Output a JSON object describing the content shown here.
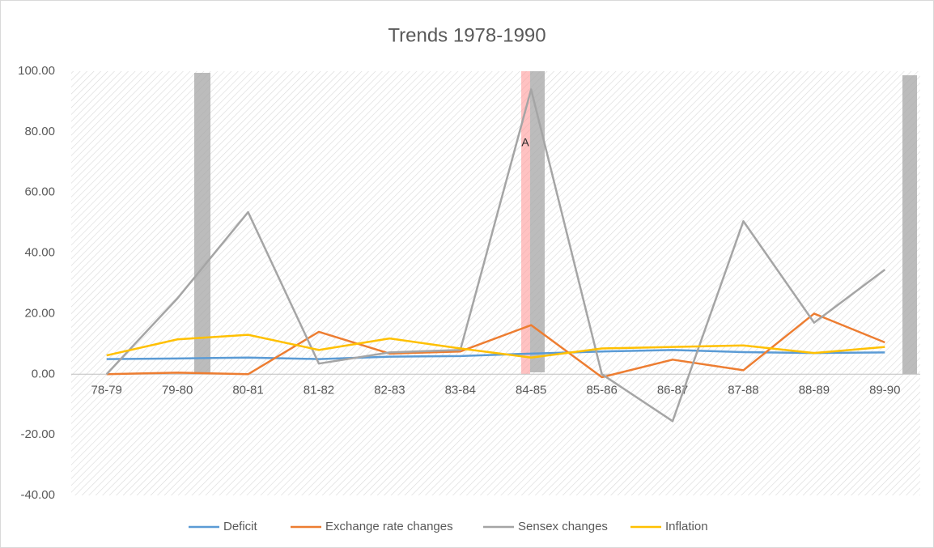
{
  "chart_data": {
    "type": "line",
    "title": "Trends 1978-1990",
    "categories": [
      "78-79",
      "79-80",
      "80-81",
      "81-82",
      "82-83",
      "83-84",
      "84-85",
      "85-86",
      "86-87",
      "87-88",
      "88-89",
      "89-90"
    ],
    "series": [
      {
        "name": "Deficit",
        "color": "#5b9bd5",
        "values": [
          5,
          5.2,
          5.5,
          5,
          5.8,
          6,
          6.8,
          7.5,
          8,
          7.3,
          7,
          7.2
        ]
      },
      {
        "name": "Exchange rate changes",
        "color": "#ed7d31",
        "values": [
          0,
          0.5,
          0,
          14,
          6.8,
          7.5,
          16.2,
          -1,
          4.8,
          1.3,
          20,
          10.5
        ]
      },
      {
        "name": "Sensex changes",
        "color": "#a5a5a5",
        "values": [
          0,
          25,
          53.5,
          3.5,
          7.2,
          8,
          94,
          0,
          -15.5,
          50.5,
          17,
          34.5
        ]
      },
      {
        "name": "Inflation",
        "color": "#ffc000",
        "values": [
          6.2,
          11.5,
          13,
          8,
          11.8,
          8.5,
          5.5,
          8.5,
          9,
          9.5,
          7,
          9
        ]
      }
    ],
    "annotation": "A",
    "ylim": [
      -40,
      100
    ],
    "yticks": [
      {
        "value": -40,
        "label": "-40.00"
      },
      {
        "value": -20,
        "label": "-20.00"
      },
      {
        "value": 0,
        "label": "0.00"
      },
      {
        "value": 20,
        "label": "20.00"
      },
      {
        "value": 40,
        "label": "40.00"
      },
      {
        "value": 60,
        "label": "60.00"
      },
      {
        "value": 80,
        "label": "80.00"
      },
      {
        "value": 100,
        "label": "100.00"
      }
    ],
    "legend": "bottom"
  }
}
